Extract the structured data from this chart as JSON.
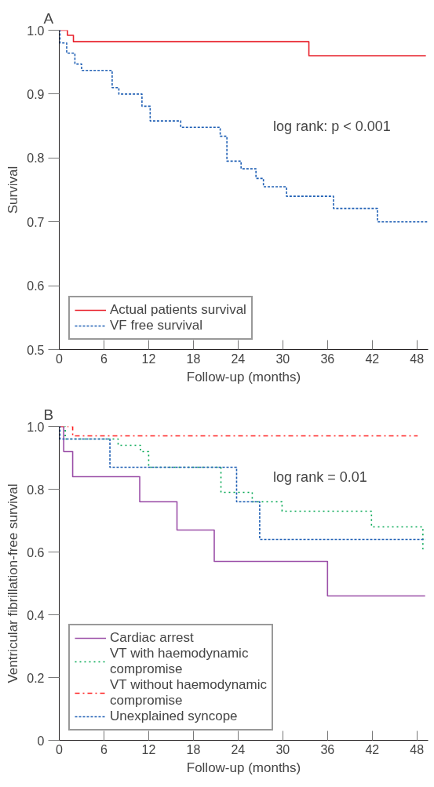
{
  "chart_data": [
    {
      "type": "step",
      "title": "A",
      "xlabel": "Follow-up (months)",
      "ylabel": "Survival",
      "xlim": [
        0,
        49.5
      ],
      "xticks": [
        0,
        6,
        12,
        18,
        24,
        30,
        36,
        42,
        48
      ],
      "ylim": [
        0.5,
        1.0
      ],
      "yticks": [
        {
          "value": 0.5,
          "label": "0.5"
        },
        {
          "value": 0.6,
          "label": "0.6"
        },
        {
          "value": 0.7,
          "label": "0.7"
        },
        {
          "value": 0.8,
          "label": "0.8"
        },
        {
          "value": 0.9,
          "label": "0.9"
        },
        {
          "value": 1.0,
          "label": "1.0"
        }
      ],
      "grid": false,
      "legend": "bottom left",
      "annotations": [
        "log rank: p < 0.001"
      ],
      "series": [
        {
          "name": "Actual patients survival",
          "color": "#e8202a",
          "line_style": "solid",
          "x": [
            0,
            1.1,
            1.9,
            33.5,
            49.2
          ],
          "values": [
            1.0,
            0.992,
            0.982,
            0.96,
            0.96
          ]
        },
        {
          "name": "VF free survival",
          "color": "#1f5fb4",
          "line_style": "dashed",
          "x": [
            0,
            0.1,
            1.0,
            2.1,
            3.0,
            7.1,
            8.0,
            11.1,
            12.2,
            16.3,
            21.6,
            22.5,
            24.4,
            26.4,
            27.4,
            30.5,
            36.8,
            42.7,
            49.4
          ],
          "values": [
            1.0,
            0.98,
            0.964,
            0.947,
            0.937,
            0.91,
            0.9,
            0.881,
            0.858,
            0.848,
            0.834,
            0.795,
            0.783,
            0.768,
            0.755,
            0.74,
            0.721,
            0.7,
            0.7
          ]
        }
      ]
    },
    {
      "type": "step",
      "title": "B",
      "xlabel": "Follow-up (months)",
      "ylabel": "Ventricular fibrillation-free survival",
      "xlim": [
        0,
        49.5
      ],
      "xticks": [
        0,
        6,
        12,
        18,
        24,
        30,
        36,
        42,
        48
      ],
      "ylim": [
        0,
        1.0
      ],
      "yticks": [
        0,
        {
          "value": 0.2,
          "label": "0.2"
        },
        {
          "value": 0.4,
          "label": "0.4"
        },
        {
          "value": 0.6,
          "label": "0.6"
        },
        {
          "value": 0.8,
          "label": "0.8"
        },
        {
          "value": 1.0,
          "label": "1.0"
        }
      ],
      "grid": false,
      "legend": "bottom left",
      "annotations": [
        "log rank = 0.01"
      ],
      "series": [
        {
          "name": "Cardiac arrest",
          "color": "#9b4fa8",
          "line_style": "solid",
          "x": [
            0,
            0.6,
            1.8,
            10.8,
            15.8,
            20.8,
            36.0,
            49.1
          ],
          "values": [
            1.0,
            0.92,
            0.84,
            0.76,
            0.67,
            0.57,
            0.46,
            0.46
          ]
        },
        {
          "name": "VT with haemodynamic compromise",
          "color": "#00a651",
          "line_style": "dotted",
          "x": [
            0,
            0.8,
            7.9,
            10.9,
            12.0,
            21.7,
            25.9,
            29.9,
            41.9,
            48.8,
            49.0
          ],
          "values": [
            1.0,
            0.96,
            0.94,
            0.92,
            0.87,
            0.79,
            0.76,
            0.73,
            0.68,
            0.61,
            0.61
          ]
        },
        {
          "name": "VT without haemodynamic compromise",
          "color": "#ff2020",
          "line_style": "dashdot",
          "x": [
            0,
            1.8,
            48.1
          ],
          "values": [
            1.0,
            0.97,
            0.97
          ]
        },
        {
          "name": "Unexplained syncope",
          "color": "#1f5fb4",
          "line_style": "dashed",
          "x": [
            0,
            0.1,
            6.8,
            23.8,
            26.9,
            49.1
          ],
          "values": [
            1.0,
            0.96,
            0.87,
            0.76,
            0.64,
            0.64
          ]
        }
      ]
    }
  ]
}
